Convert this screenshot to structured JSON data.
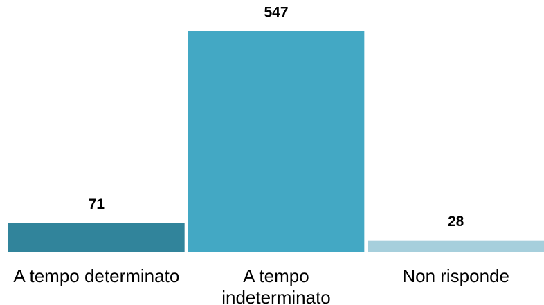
{
  "chart_data": {
    "type": "bar",
    "categories": [
      "A tempo determinato",
      "A tempo indeterminato",
      "Non risponde"
    ],
    "values": [
      71,
      547,
      28
    ],
    "colors": [
      "#31849b",
      "#43a8c4",
      "#a6cfdc"
    ],
    "ylim": [
      0,
      547
    ]
  }
}
